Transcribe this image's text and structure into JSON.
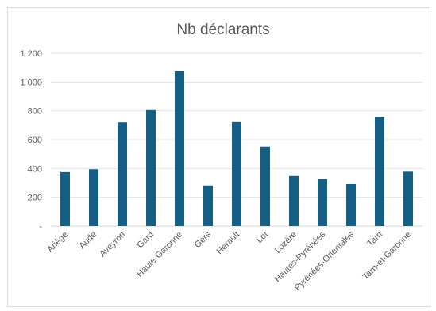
{
  "chart_data": {
    "type": "bar",
    "title": "Nb déclarants",
    "xlabel": "",
    "ylabel": "",
    "ylim": [
      0,
      1200
    ],
    "yticks": [
      0,
      200,
      400,
      600,
      800,
      1000,
      1200
    ],
    "ytick_labels": [
      "-",
      "200",
      "400",
      "600",
      "800",
      "1 000",
      "1 200"
    ],
    "grid": true,
    "bar_color": "#156082",
    "categories": [
      "Ariège",
      "Aude",
      "Aveyron",
      "Gard",
      "Haute-Garonne",
      "Gers",
      "Hérault",
      "Lot",
      "Lozère",
      "Hautes-Pyrénées",
      "Pyrénées-Orientales",
      "Tarn",
      "Tarn-et-Garonne"
    ],
    "values": [
      375,
      395,
      720,
      805,
      1075,
      282,
      722,
      552,
      348,
      328,
      292,
      758,
      378
    ]
  }
}
